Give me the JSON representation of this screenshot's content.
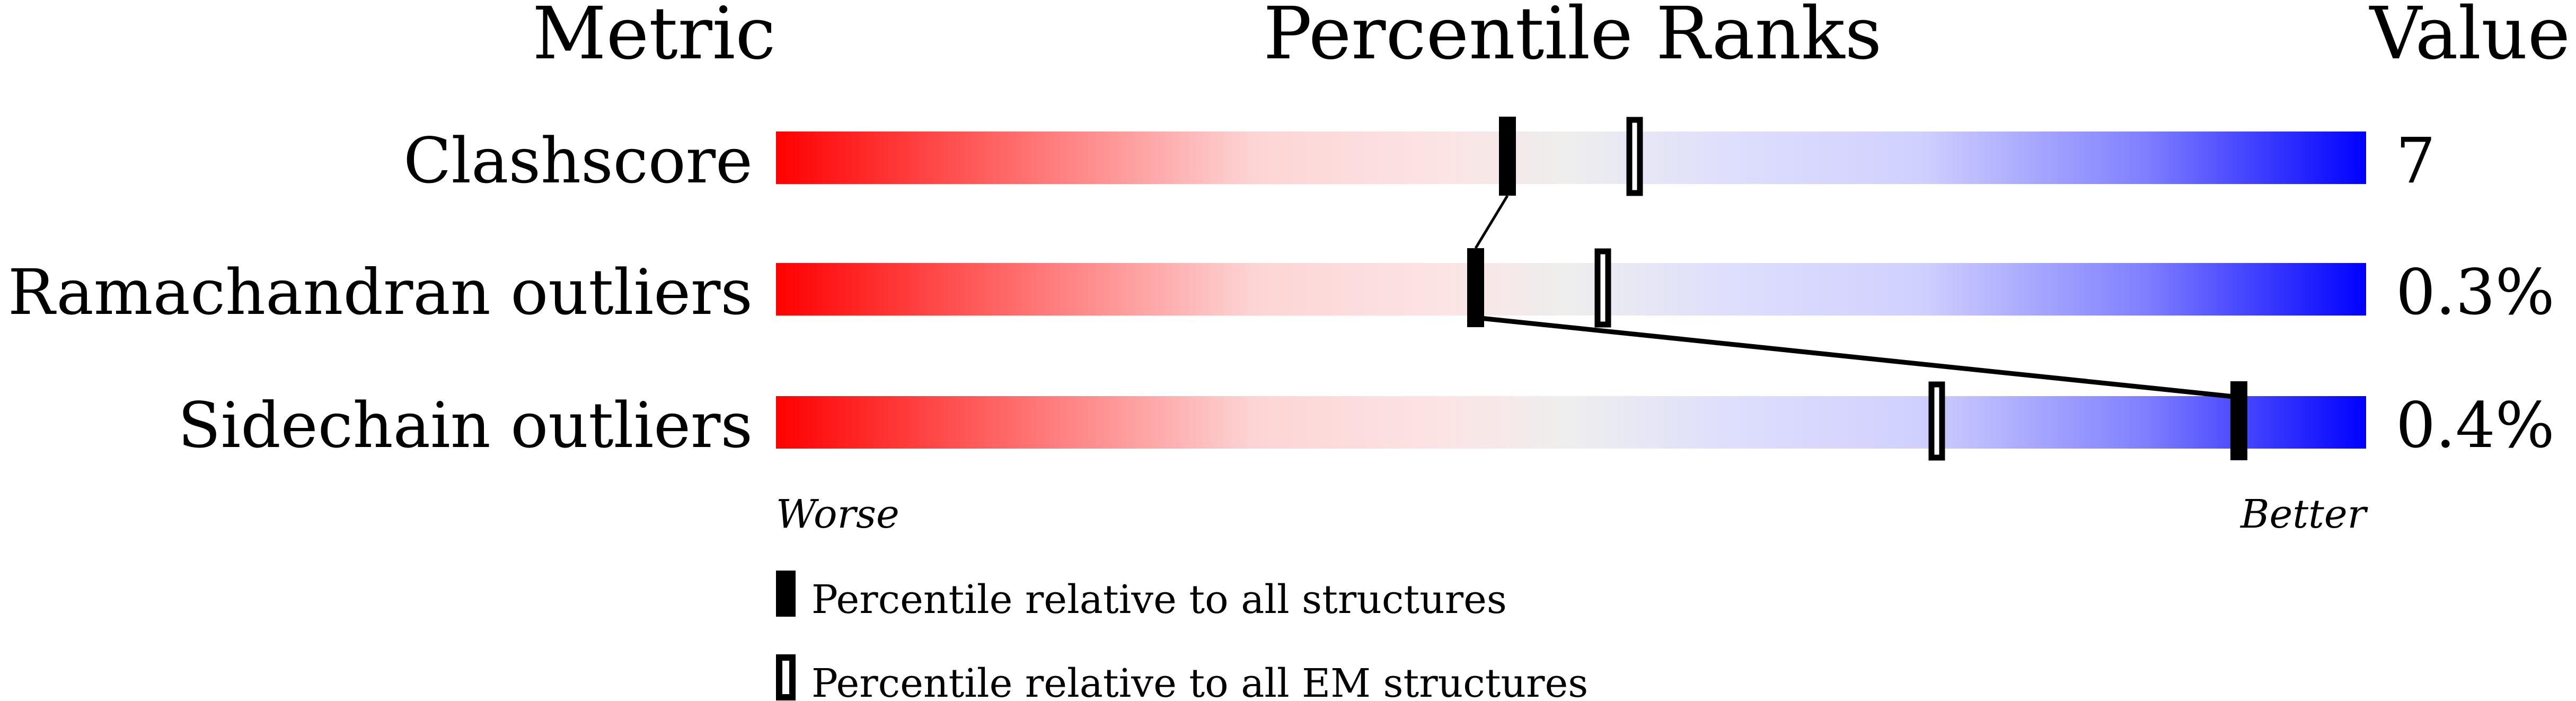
{
  "chart_data": {
    "type": "percentile-bar",
    "headers": {
      "metric": "Metric",
      "ranks": "Percentile Ranks",
      "value": "Value"
    },
    "scale": {
      "left": "Worse",
      "right": "Better",
      "range": [
        0,
        100
      ]
    },
    "colors": {
      "worse": "#ff0000",
      "neutral": "#eeeeee",
      "better": "#0000ff"
    },
    "metrics": [
      {
        "name": "Clashscore",
        "value": "7",
        "percentile_all": 46,
        "percentile_em": 54
      },
      {
        "name": "Ramachandran outliers",
        "value": "0.3%",
        "percentile_all": 44,
        "percentile_em": 52
      },
      {
        "name": "Sidechain outliers",
        "value": "0.4%",
        "percentile_all": 92,
        "percentile_em": 73
      }
    ],
    "legend": [
      {
        "marker": "filled",
        "label": "Percentile relative to all structures"
      },
      {
        "marker": "open",
        "label": "Percentile relative to all EM structures"
      }
    ]
  }
}
